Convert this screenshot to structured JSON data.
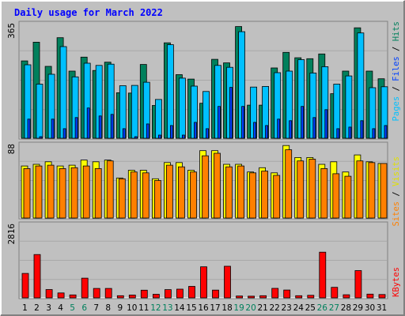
{
  "chart_data": {
    "type": "bar",
    "title": "Daily usage for March 2022",
    "categories": [
      "1",
      "2",
      "3",
      "4",
      "5",
      "6",
      "7",
      "8",
      "9",
      "10",
      "11",
      "12",
      "13",
      "14",
      "15",
      "16",
      "17",
      "18",
      "19",
      "20",
      "21",
      "22",
      "23",
      "24",
      "25",
      "26",
      "27",
      "28",
      "29",
      "30",
      "31"
    ],
    "weekend_days": [
      "5",
      "6",
      "12",
      "13",
      "19",
      "20",
      "26",
      "27"
    ],
    "panels": [
      {
        "id": "pages-files-hits",
        "max_label": "365",
        "ylim": [
          0,
          365
        ],
        "series": [
          {
            "name": "Hits",
            "color": "#00805c",
            "values": [
              243,
              302,
              226,
              316,
              211,
              255,
              213,
              239,
              143,
              142,
              232,
              103,
              300,
              200,
              186,
              110,
              248,
              237,
              351,
              104,
              104,
              221,
              270,
              253,
              250,
              265,
              140,
              211,
              347,
              211,
              187
            ]
          },
          {
            "name": "Files",
            "color": "#00c0ff",
            "values": [
              231,
              170,
              201,
              288,
              193,
              236,
              229,
              233,
              165,
              166,
              176,
              122,
              294,
              189,
              164,
              147,
              229,
              223,
              335,
              161,
              163,
              206,
              211,
              247,
              205,
              225,
              170,
              196,
              331,
              159,
              162
            ]
          },
          {
            "name": "Pages",
            "color": "#0040ff",
            "values": [
              60,
              5,
              60,
              30,
              65,
              95,
              70,
              75,
              30,
              5,
              45,
              10,
              40,
              10,
              50,
              30,
              100,
              160,
              100,
              50,
              40,
              60,
              55,
              100,
              65,
              90,
              30,
              35,
              55,
              30,
              40
            ]
          }
        ]
      },
      {
        "id": "visits-sites",
        "max_label": "88",
        "ylim": [
          0,
          88
        ],
        "series": [
          {
            "name": "Visits",
            "color": "#ffff00",
            "values": [
              61,
              63,
              66,
              61,
              62,
              68,
              66,
              68,
              47,
              56,
              56,
              46,
              65,
              65,
              56,
              79,
              79,
              63,
              63,
              54,
              59,
              53,
              85,
              71,
              71,
              63,
              66,
              54,
              74,
              66,
              64
            ]
          },
          {
            "name": "Sites",
            "color": "#ff8000",
            "values": [
              58,
              61,
              62,
              58,
              59,
              61,
              58,
              67,
              46,
              54,
              53,
              44,
              62,
              60,
              54,
              73,
              76,
              60,
              61,
              53,
              55,
              50,
              80,
              67,
              69,
              58,
              52,
              49,
              67,
              65,
              64
            ]
          }
        ]
      },
      {
        "id": "kbytes",
        "max_label": "2816",
        "ylim": [
          0,
          2816
        ],
        "series": [
          {
            "name": "KBytes",
            "color": "#ff0000",
            "values": [
              916,
              1623,
              311,
              185,
              110,
              737,
              353,
              353,
              81,
              103,
              287,
              132,
              309,
              325,
              431,
              1164,
              291,
              1186,
              69,
              62,
              81,
              357,
              293,
              81,
              94,
              1712,
              394,
              115,
              1023,
              140,
              125
            ]
          }
        ]
      }
    ],
    "side_labels": {
      "top": [
        {
          "text": "Pages",
          "color": "#00c0ff"
        },
        {
          "text": " / ",
          "color": "#000000"
        },
        {
          "text": "Files",
          "color": "#0040ff"
        },
        {
          "text": " / ",
          "color": "#000000"
        },
        {
          "text": "Hits",
          "color": "#00805c"
        }
      ],
      "middle": [
        {
          "text": "Sites",
          "color": "#ff8000"
        },
        {
          "text": " / ",
          "color": "#000000"
        },
        {
          "text": "Visits",
          "color": "#e0e000"
        }
      ],
      "bottom": [
        {
          "text": "KBytes",
          "color": "#ff0000"
        }
      ]
    },
    "colors": {
      "title": "#0000ff",
      "background": "#c0c0c0",
      "frame_dark": "#808080",
      "frame_light": "#ffffff",
      "day_label": "#000000",
      "weekend_label": "#00805c"
    }
  }
}
